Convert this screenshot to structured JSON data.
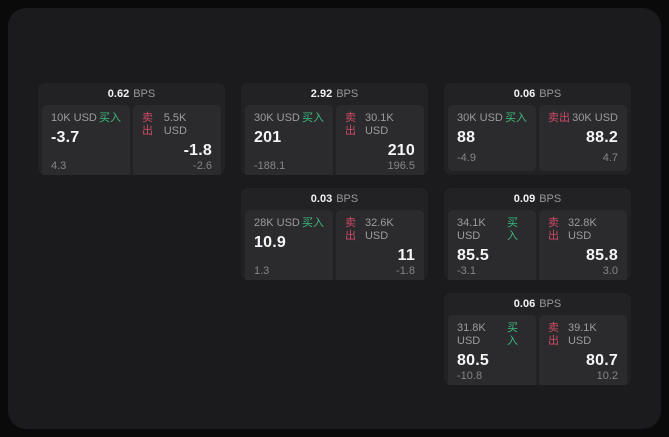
{
  "labels": {
    "buy": "买入",
    "sell": "卖出",
    "bps_suffix": "BPS"
  },
  "colors": {
    "background": "#0a0a0b",
    "panel": "#1b1b1d",
    "card": "#222224",
    "tile": "#2b2b2d",
    "buy_green": "#3cba7c",
    "sell_red": "#cc4a66",
    "value_white": "#f5f5f6",
    "muted_gray": "#9b9ba1"
  },
  "cards": [
    {
      "bps": "0.62",
      "col": 1,
      "row": 1,
      "buy": {
        "size": "10K USD",
        "price": "-3.7",
        "change": "4.3"
      },
      "sell": {
        "size": "5.5K USD",
        "price": "-1.8",
        "change": "-2.6"
      }
    },
    {
      "bps": "2.92",
      "col": 2,
      "row": 1,
      "buy": {
        "size": "30K USD",
        "price": "201",
        "change": "-188.1"
      },
      "sell": {
        "size": "30.1K USD",
        "price": "210",
        "change": "196.5"
      }
    },
    {
      "bps": "0.06",
      "col": 3,
      "row": 1,
      "buy": {
        "size": "30K USD",
        "price": "88",
        "change": "-4.9"
      },
      "sell": {
        "size": "30K USD",
        "price": "88.2",
        "change": "4.7"
      }
    },
    {
      "bps": "0.03",
      "col": 2,
      "row": 2,
      "buy": {
        "size": "28K USD",
        "price": "10.9",
        "change": "1.3"
      },
      "sell": {
        "size": "32.6K USD",
        "price": "11",
        "change": "-1.8"
      }
    },
    {
      "bps": "0.09",
      "col": 3,
      "row": 2,
      "buy": {
        "size": "34.1K USD",
        "price": "85.5",
        "change": "-3.1"
      },
      "sell": {
        "size": "32.8K USD",
        "price": "85.8",
        "change": "3.0"
      }
    },
    {
      "bps": "0.06",
      "col": 3,
      "row": 3,
      "buy": {
        "size": "31.8K USD",
        "price": "80.5",
        "change": "-10.8"
      },
      "sell": {
        "size": "39.1K USD",
        "price": "80.7",
        "change": "10.2"
      }
    }
  ]
}
